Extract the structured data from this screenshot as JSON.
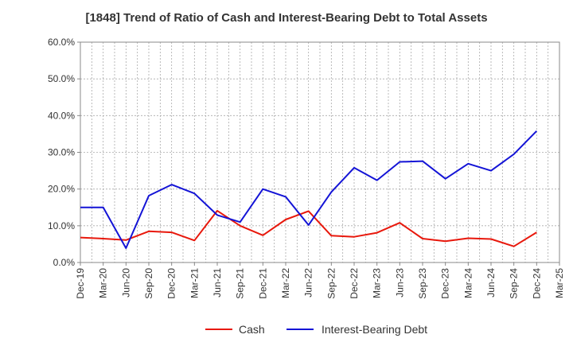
{
  "chart_data": {
    "type": "line",
    "title": "[1848]  Trend of Ratio of Cash and Interest-Bearing Debt to Total Assets",
    "xlabel": "",
    "ylabel": "",
    "x": [
      "Dec-19",
      "Mar-20",
      "Jun-20",
      "Sep-20",
      "Dec-20",
      "Mar-21",
      "Jun-21",
      "Sep-21",
      "Dec-21",
      "Mar-22",
      "Jun-22",
      "Sep-22",
      "Dec-22",
      "Mar-23",
      "Jun-23",
      "Sep-23",
      "Dec-23",
      "Mar-24",
      "Jun-24",
      "Sep-24",
      "Dec-24",
      "Mar-25"
    ],
    "y_ticks": [
      "0.0%",
      "10.0%",
      "20.0%",
      "30.0%",
      "40.0%",
      "50.0%",
      "60.0%"
    ],
    "ylim": [
      0,
      60
    ],
    "grid": true,
    "legend_position": "bottom",
    "series": [
      {
        "name": "Cash",
        "color": "#e8180c",
        "values": [
          6.8,
          6.5,
          6.1,
          8.5,
          8.2,
          6.0,
          14.1,
          10.0,
          7.4,
          11.7,
          14.0,
          7.3,
          7.0,
          8.1,
          10.8,
          6.5,
          5.8,
          6.6,
          6.4,
          4.4,
          8.2,
          null
        ]
      },
      {
        "name": "Interest-Bearing Debt",
        "color": "#1414d6",
        "values": [
          15.0,
          15.0,
          3.9,
          18.2,
          21.2,
          18.8,
          12.9,
          11.0,
          20.0,
          17.9,
          10.2,
          19.2,
          25.8,
          22.4,
          27.4,
          27.6,
          22.8,
          26.9,
          25.0,
          29.5,
          35.8,
          null
        ]
      }
    ]
  }
}
